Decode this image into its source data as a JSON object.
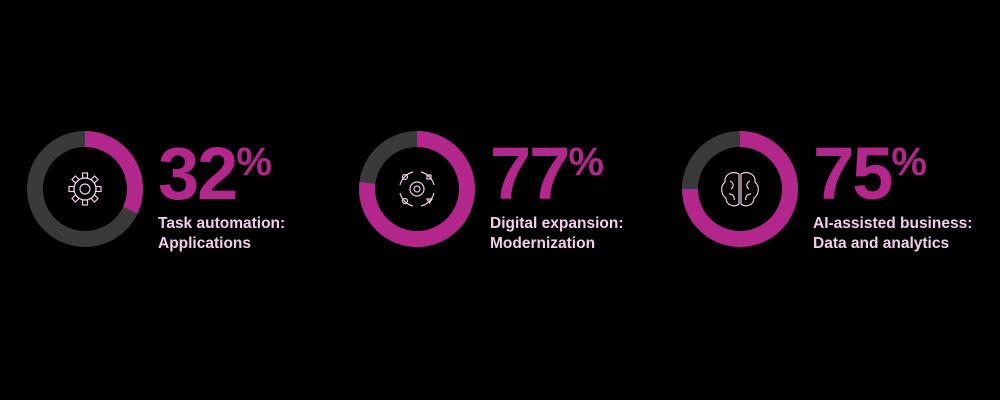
{
  "chart_data": [
    {
      "type": "donut",
      "values": [
        32
      ],
      "value_labels": [
        "32%"
      ],
      "title": "Task automation:",
      "subtitle": "Applications",
      "ylim": [
        0,
        100
      ],
      "color": "#b3268c",
      "track_color": "#3a3a3a"
    },
    {
      "type": "donut",
      "values": [
        77
      ],
      "value_labels": [
        "77%"
      ],
      "title": "Digital expansion:",
      "subtitle": "Modernization",
      "ylim": [
        0,
        100
      ],
      "color": "#b3268c",
      "track_color": "#3a3a3a"
    },
    {
      "type": "donut",
      "values": [
        75
      ],
      "value_labels": [
        "75%"
      ],
      "title": "AI-assisted business:",
      "subtitle": "Data and analytics",
      "ylim": [
        0,
        100
      ],
      "color": "#b3268c",
      "track_color": "#3a3a3a"
    }
  ]
}
